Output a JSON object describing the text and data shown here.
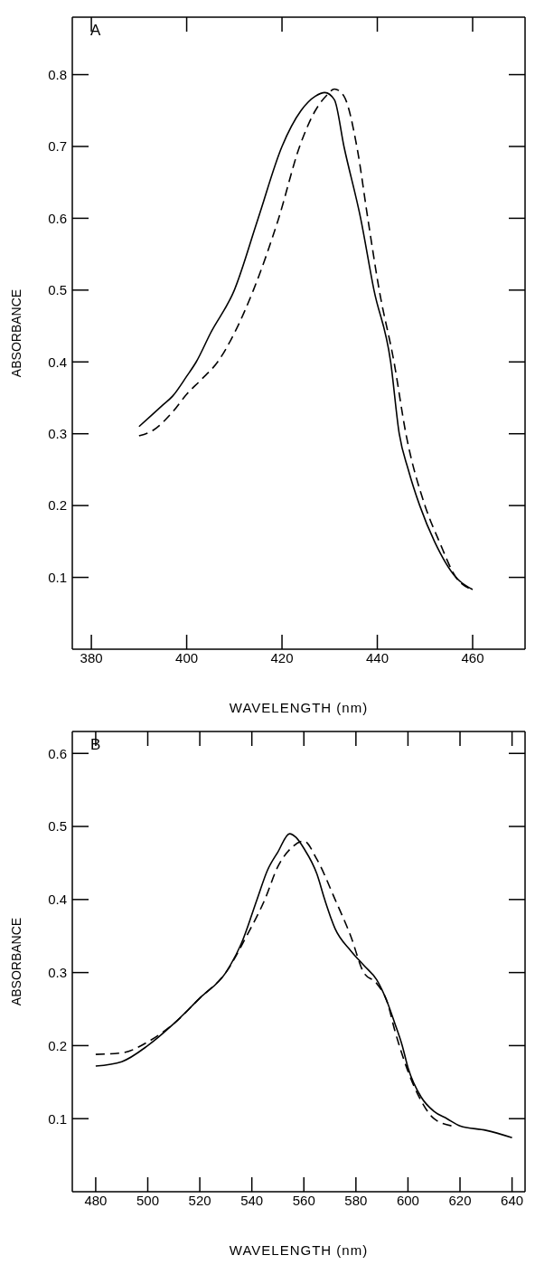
{
  "chart_data": [
    {
      "type": "line",
      "annotations": [
        "A"
      ],
      "xlabel": "WAVELENGTH (nm)",
      "ylabel": "ABSORBANCE",
      "xlim": [
        376,
        471
      ],
      "xticks": [
        380,
        400,
        420,
        440,
        460
      ],
      "ylim": [
        0,
        0.88
      ],
      "yticks": [
        0.1,
        0.2,
        0.3,
        0.4,
        0.5,
        0.6,
        0.7,
        0.8
      ],
      "series": [
        {
          "color": "#000000",
          "line_style": "solid",
          "x": [
            390,
            395,
            397,
            400,
            402,
            405,
            410,
            415,
            420,
            424,
            427,
            429,
            431,
            433,
            436.5,
            439.3,
            442.8,
            444.6,
            446.5,
            448.9,
            452,
            456.5,
            460
          ],
          "values": [
            0.31,
            0.34,
            0.352,
            0.38,
            0.4,
            0.44,
            0.5,
            0.6,
            0.7,
            0.75,
            0.77,
            0.775,
            0.765,
            0.7,
            0.6,
            0.5,
            0.4,
            0.3,
            0.25,
            0.2,
            0.15,
            0.1,
            0.083
          ]
        },
        {
          "color": "#000000",
          "line_style": "dashed",
          "x": [
            390,
            393,
            397,
            400,
            403,
            406.5,
            410,
            414,
            419.3,
            423.7,
            427,
            429.5,
            431,
            433,
            435.7,
            438,
            440.4,
            443.5,
            446,
            450,
            453,
            456.5,
            460
          ],
          "values": [
            0.297,
            0.305,
            0.33,
            0.355,
            0.375,
            0.4,
            0.44,
            0.5,
            0.6,
            0.7,
            0.75,
            0.772,
            0.78,
            0.77,
            0.7,
            0.6,
            0.5,
            0.4,
            0.3,
            0.2,
            0.15,
            0.1,
            0.083
          ]
        }
      ]
    },
    {
      "type": "line",
      "annotations": [
        "B"
      ],
      "xlabel": "WAVELENGTH (nm)",
      "ylabel": "ABSORBANCE",
      "xlim": [
        471,
        645
      ],
      "xticks": [
        480,
        500,
        520,
        540,
        560,
        580,
        600,
        620,
        640
      ],
      "ylim": [
        0,
        0.63
      ],
      "yticks": [
        0.1,
        0.2,
        0.3,
        0.4,
        0.5,
        0.6
      ],
      "series": [
        {
          "color": "#000000",
          "line_style": "solid",
          "x": [
            480,
            490,
            500,
            510,
            520,
            530,
            536,
            542,
            546,
            550,
            554.5,
            557,
            560,
            565,
            568,
            572,
            578,
            583,
            588,
            592,
            595,
            597.8,
            600,
            605,
            610,
            615,
            620,
            630,
            640
          ],
          "values": [
            0.172,
            0.178,
            0.2,
            0.23,
            0.265,
            0.3,
            0.34,
            0.4,
            0.44,
            0.465,
            0.49,
            0.485,
            0.47,
            0.435,
            0.4,
            0.36,
            0.33,
            0.31,
            0.29,
            0.26,
            0.23,
            0.2,
            0.17,
            0.13,
            0.11,
            0.1,
            0.09,
            0.084,
            0.074
          ]
        },
        {
          "color": "#000000",
          "line_style": "dashed",
          "x": [
            480,
            490,
            500,
            510,
            520,
            530,
            538,
            545,
            550,
            555,
            560,
            565,
            572,
            578,
            583,
            588,
            592,
            595,
            600,
            605,
            610,
            617
          ],
          "values": [
            0.188,
            0.19,
            0.205,
            0.23,
            0.265,
            0.3,
            0.35,
            0.4,
            0.445,
            0.47,
            0.48,
            0.455,
            0.4,
            0.35,
            0.3,
            0.285,
            0.26,
            0.22,
            0.165,
            0.125,
            0.1,
            0.09
          ]
        }
      ]
    }
  ]
}
